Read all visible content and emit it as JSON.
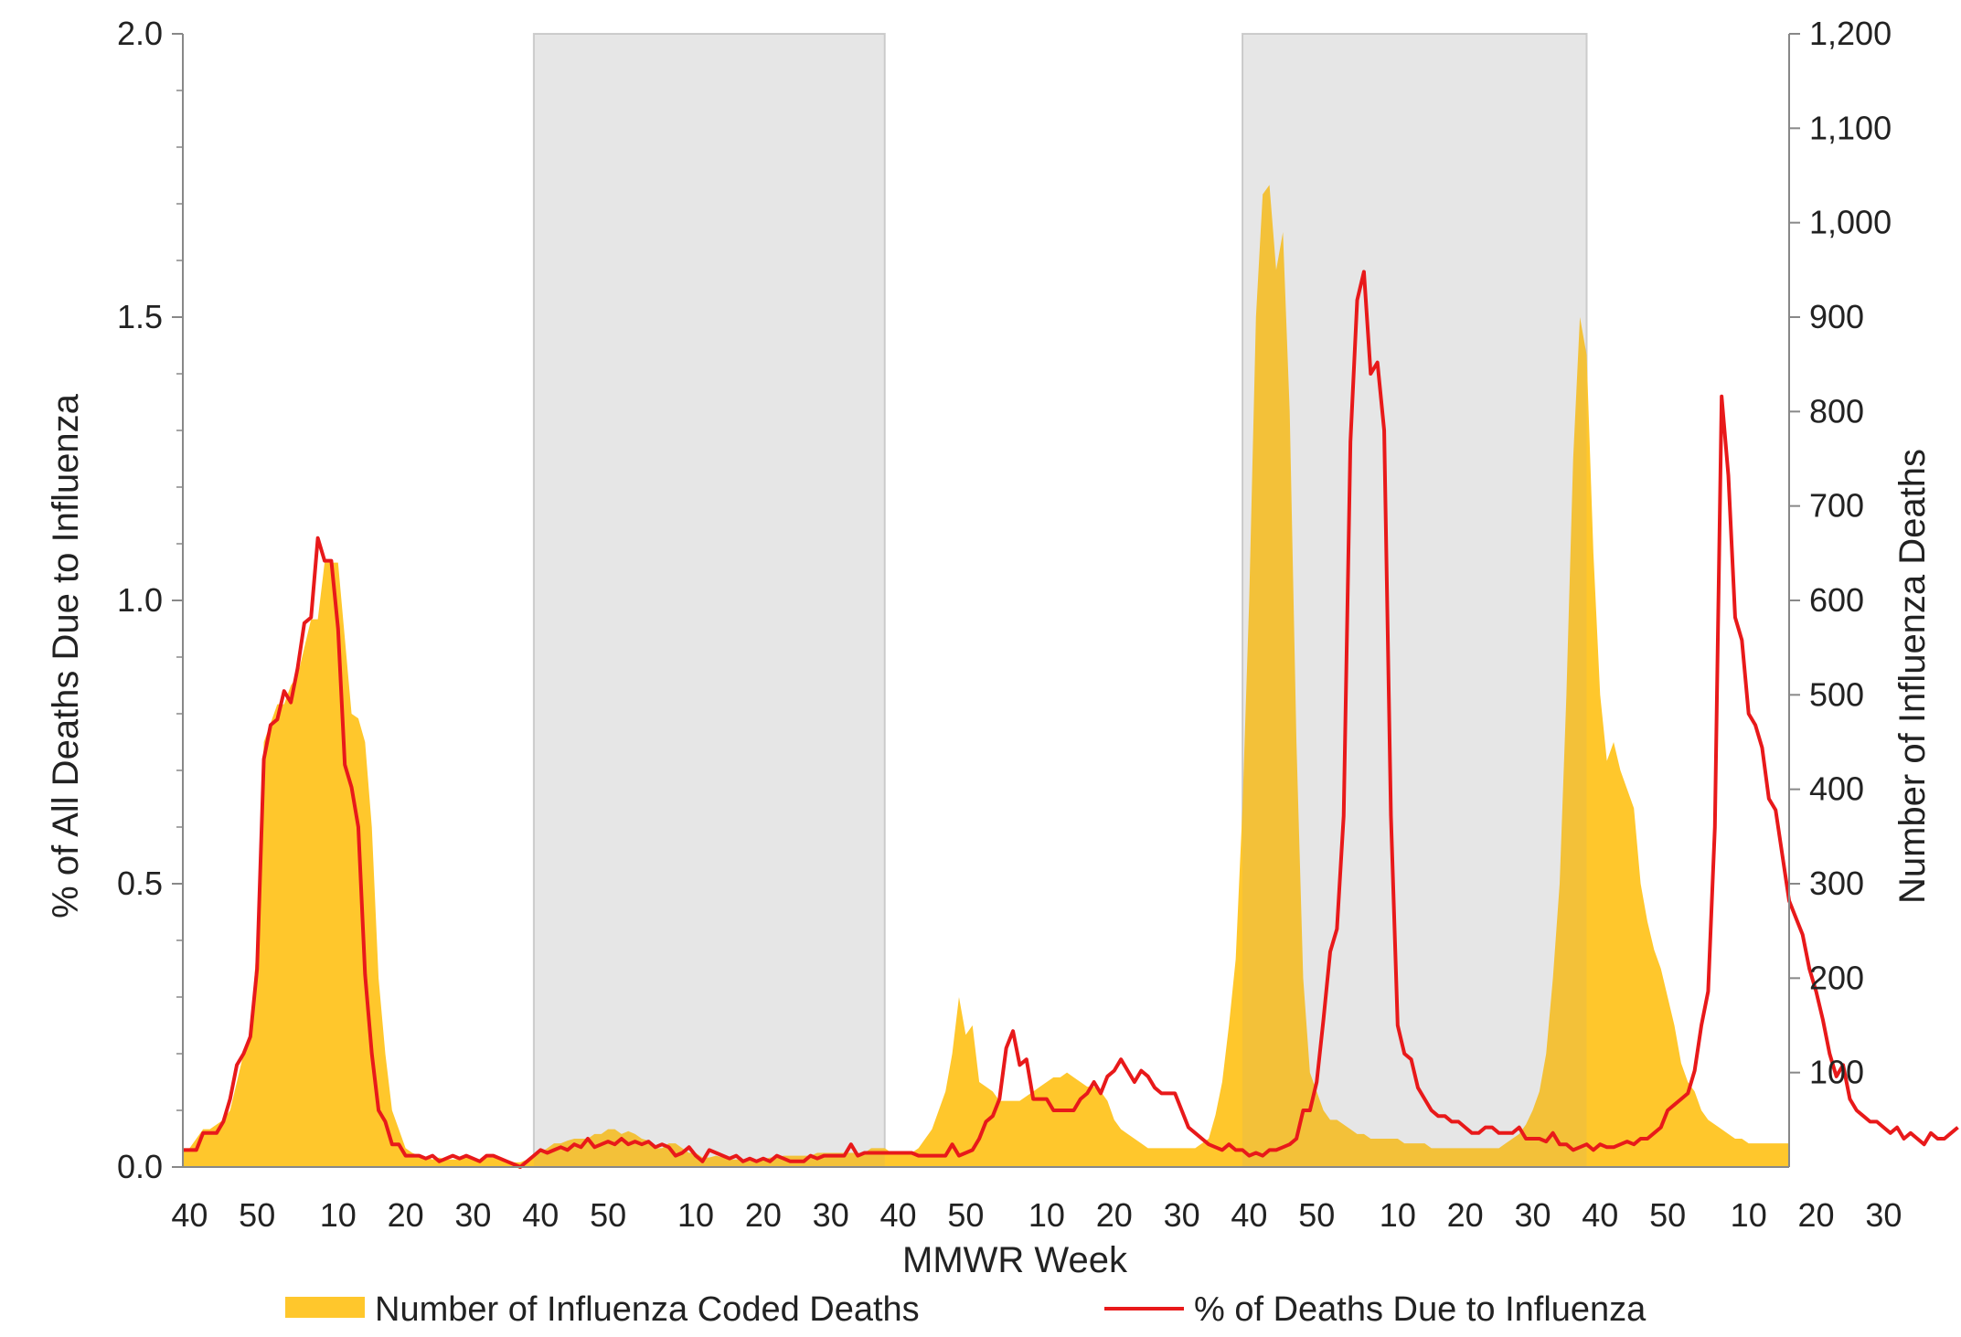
{
  "chart_data": {
    "type": "line",
    "xlabel": "MMWR Week",
    "ylabel_left": "% of All Deaths Due to Influenza",
    "ylabel_right": "Number of Influenza Deaths",
    "ylim_left": [
      0,
      2.0
    ],
    "ylim_right": [
      0,
      1200
    ],
    "y_ticks_left": [
      "0.0",
      "0.5",
      "1.0",
      "1.5",
      "2.0"
    ],
    "y_ticks_right": [
      "100",
      "200",
      "300",
      "400",
      "500",
      "600",
      "700",
      "800",
      "900",
      "1,000",
      "1,100",
      "1,200"
    ],
    "x_tick_labels": [
      {
        "label": "40",
        "week_index": 1
      },
      {
        "label": "50",
        "week_index": 11
      },
      {
        "label": "10",
        "week_index": 23
      },
      {
        "label": "20",
        "week_index": 33
      },
      {
        "label": "30",
        "week_index": 43
      },
      {
        "label": "40",
        "week_index": 53
      },
      {
        "label": "50",
        "week_index": 63
      },
      {
        "label": "10",
        "week_index": 76
      },
      {
        "label": "20",
        "week_index": 86
      },
      {
        "label": "30",
        "week_index": 96
      },
      {
        "label": "40",
        "week_index": 106
      },
      {
        "label": "50",
        "week_index": 116
      },
      {
        "label": "10",
        "week_index": 128
      },
      {
        "label": "20",
        "week_index": 138
      },
      {
        "label": "30",
        "week_index": 148
      },
      {
        "label": "40",
        "week_index": 158
      },
      {
        "label": "50",
        "week_index": 168
      },
      {
        "label": "10",
        "week_index": 180
      },
      {
        "label": "20",
        "week_index": 190
      },
      {
        "label": "30",
        "week_index": 200
      },
      {
        "label": "40",
        "week_index": 210
      },
      {
        "label": "50",
        "week_index": 220
      },
      {
        "label": "10",
        "week_index": 232
      },
      {
        "label": "20",
        "week_index": 242
      },
      {
        "label": "30",
        "week_index": 252
      }
    ],
    "shaded_season_ranges": [
      [
        52,
        104
      ],
      [
        157,
        208
      ]
    ],
    "grid": false,
    "legend_position": "bottom",
    "series": [
      {
        "name": "Number of Influenza Coded Deaths",
        "kind": "area",
        "axis": "right",
        "color": "#FFC72C",
        "values": [
          20,
          20,
          30,
          40,
          40,
          45,
          50,
          60,
          90,
          120,
          140,
          240,
          450,
          470,
          490,
          490,
          510,
          520,
          550,
          580,
          580,
          640,
          640,
          640,
          560,
          480,
          475,
          450,
          360,
          200,
          120,
          60,
          40,
          20,
          15,
          12,
          10,
          8,
          10,
          8,
          8,
          8,
          10,
          8,
          8,
          10,
          10,
          8,
          6,
          5,
          5,
          8,
          12,
          15,
          20,
          25,
          25,
          28,
          30,
          30,
          30,
          35,
          35,
          40,
          40,
          35,
          38,
          35,
          30,
          28,
          20,
          20,
          25,
          25,
          20,
          15,
          15,
          10,
          10,
          12,
          10,
          8,
          8,
          8,
          10,
          8,
          8,
          10,
          10,
          12,
          12,
          12,
          12,
          12,
          15,
          15,
          15,
          15,
          15,
          15,
          15,
          15,
          20,
          20,
          20,
          15,
          15,
          15,
          15,
          20,
          30,
          40,
          60,
          80,
          120,
          180,
          140,
          150,
          90,
          85,
          80,
          70,
          70,
          70,
          70,
          75,
          80,
          85,
          90,
          95,
          95,
          100,
          95,
          90,
          85,
          85,
          80,
          70,
          50,
          40,
          35,
          30,
          25,
          20,
          20,
          20,
          20,
          20,
          20,
          20,
          20,
          25,
          30,
          55,
          90,
          150,
          220,
          380,
          600,
          900,
          1030,
          1040,
          950,
          990,
          800,
          450,
          200,
          100,
          80,
          60,
          50,
          50,
          45,
          40,
          35,
          35,
          30,
          30,
          30,
          30,
          30,
          25,
          25,
          25,
          25,
          20,
          20,
          20,
          20,
          20,
          20,
          20,
          20,
          20,
          20,
          20,
          25,
          30,
          35,
          45,
          60,
          80,
          120,
          200,
          300,
          500,
          750,
          900,
          860,
          650,
          500,
          430,
          450,
          420,
          400,
          380,
          300,
          260,
          230,
          210,
          180,
          150,
          110,
          90,
          80,
          60,
          50,
          45,
          40,
          35,
          30,
          30,
          25,
          25,
          25,
          25,
          25,
          25,
          25
        ]
      },
      {
        "name": "% of Deaths Due to Influenza",
        "kind": "line",
        "axis": "left",
        "color": "#E8191A",
        "values": [
          0.03,
          0.03,
          0.03,
          0.06,
          0.06,
          0.06,
          0.08,
          0.12,
          0.18,
          0.2,
          0.23,
          0.35,
          0.72,
          0.78,
          0.79,
          0.84,
          0.82,
          0.88,
          0.96,
          0.97,
          1.11,
          1.07,
          1.07,
          0.95,
          0.71,
          0.67,
          0.6,
          0.34,
          0.2,
          0.1,
          0.08,
          0.04,
          0.04,
          0.02,
          0.02,
          0.02,
          0.015,
          0.02,
          0.01,
          0.015,
          0.02,
          0.015,
          0.02,
          0.015,
          0.01,
          0.02,
          0.02,
          0.015,
          0.01,
          0.005,
          0.0,
          0.01,
          0.02,
          0.03,
          0.025,
          0.03,
          0.035,
          0.03,
          0.04,
          0.035,
          0.05,
          0.035,
          0.04,
          0.045,
          0.04,
          0.05,
          0.04,
          0.045,
          0.04,
          0.045,
          0.035,
          0.04,
          0.035,
          0.02,
          0.025,
          0.035,
          0.02,
          0.01,
          0.03,
          0.025,
          0.02,
          0.015,
          0.02,
          0.01,
          0.015,
          0.01,
          0.015,
          0.01,
          0.02,
          0.015,
          0.01,
          0.01,
          0.01,
          0.02,
          0.015,
          0.02,
          0.02,
          0.02,
          0.02,
          0.04,
          0.02,
          0.025,
          0.025,
          0.025,
          0.025,
          0.025,
          0.025,
          0.025,
          0.025,
          0.02,
          0.02,
          0.02,
          0.02,
          0.02,
          0.04,
          0.02,
          0.025,
          0.03,
          0.05,
          0.08,
          0.09,
          0.12,
          0.21,
          0.24,
          0.18,
          0.19,
          0.12,
          0.12,
          0.12,
          0.1,
          0.1,
          0.1,
          0.1,
          0.12,
          0.13,
          0.15,
          0.13,
          0.16,
          0.17,
          0.19,
          0.17,
          0.15,
          0.17,
          0.16,
          0.14,
          0.13,
          0.13,
          0.13,
          0.1,
          0.07,
          0.06,
          0.05,
          0.04,
          0.035,
          0.03,
          0.04,
          0.03,
          0.03,
          0.02,
          0.025,
          0.02,
          0.03,
          0.03,
          0.035,
          0.04,
          0.05,
          0.1,
          0.1,
          0.15,
          0.26,
          0.38,
          0.42,
          0.62,
          1.28,
          1.53,
          1.58,
          1.4,
          1.42,
          1.3,
          0.62,
          0.25,
          0.2,
          0.19,
          0.14,
          0.12,
          0.1,
          0.09,
          0.09,
          0.08,
          0.08,
          0.07,
          0.06,
          0.06,
          0.07,
          0.07,
          0.06,
          0.06,
          0.06,
          0.07,
          0.05,
          0.05,
          0.05,
          0.045,
          0.06,
          0.04,
          0.04,
          0.03,
          0.035,
          0.04,
          0.03,
          0.04,
          0.035,
          0.035,
          0.04,
          0.045,
          0.04,
          0.05,
          0.05,
          0.06,
          0.07,
          0.1,
          0.11,
          0.12,
          0.13,
          0.17,
          0.25,
          0.31,
          0.6,
          1.36,
          1.22,
          0.97,
          0.93,
          0.8,
          0.78,
          0.74,
          0.65,
          0.63,
          0.55,
          0.47,
          0.44,
          0.41,
          0.35,
          0.31,
          0.26,
          0.2,
          0.16,
          0.18,
          0.12,
          0.1,
          0.09,
          0.08,
          0.08,
          0.07,
          0.06,
          0.07,
          0.05,
          0.06,
          0.05,
          0.04,
          0.06,
          0.05,
          0.05,
          0.06,
          0.07
        ]
      }
    ]
  },
  "legend": {
    "area_label": "Number of Influenza Coded Deaths",
    "line_label": "% of Deaths Due to Influenza"
  }
}
